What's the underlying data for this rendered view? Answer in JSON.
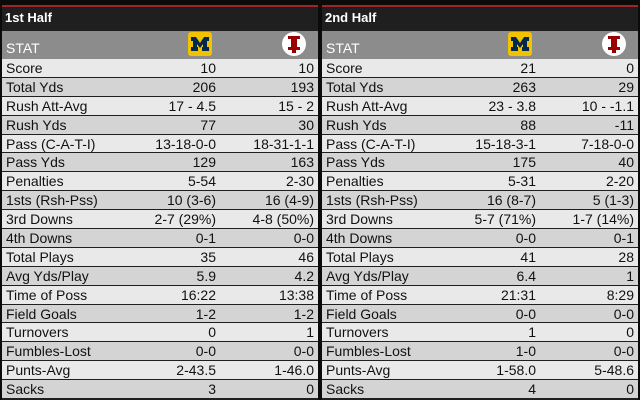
{
  "halves": [
    {
      "title": "1st Half",
      "stat_header": "STAT",
      "team1_logo": "michigan-block-m-logo",
      "team2_logo": "indiana-iu-logo",
      "rows": [
        {
          "label": "Score",
          "team1": "10",
          "team2": "10"
        },
        {
          "label": "Total Yds",
          "team1": "206",
          "team2": "193"
        },
        {
          "label": "Rush Att-Avg",
          "team1": "17 - 4.5",
          "team2": "15 - 2"
        },
        {
          "label": "Rush Yds",
          "team1": "77",
          "team2": "30"
        },
        {
          "label": "Pass (C-A-T-I)",
          "team1": "13-18-0-0",
          "team2": "18-31-1-1"
        },
        {
          "label": "Pass Yds",
          "team1": "129",
          "team2": "163"
        },
        {
          "label": "Penalties",
          "team1": "5-54",
          "team2": "2-30"
        },
        {
          "label": "1sts (Rsh-Pss)",
          "team1": "10 (3-6)",
          "team2": "16 (4-9)"
        },
        {
          "label": "3rd Downs",
          "team1": "2-7 (29%)",
          "team2": "4-8 (50%)"
        },
        {
          "label": "4th Downs",
          "team1": "0-1",
          "team2": "0-0"
        },
        {
          "label": "Total Plays",
          "team1": "35",
          "team2": "46"
        },
        {
          "label": "Avg Yds/Play",
          "team1": "5.9",
          "team2": "4.2"
        },
        {
          "label": "Time of Poss",
          "team1": "16:22",
          "team2": "13:38"
        },
        {
          "label": "Field Goals",
          "team1": "1-2",
          "team2": "1-2"
        },
        {
          "label": "Turnovers",
          "team1": "0",
          "team2": "1"
        },
        {
          "label": "Fumbles-Lost",
          "team1": "0-0",
          "team2": "0-0"
        },
        {
          "label": "Punts-Avg",
          "team1": "2-43.5",
          "team2": "1-46.0"
        },
        {
          "label": "Sacks",
          "team1": "3",
          "team2": "0"
        }
      ]
    },
    {
      "title": "2nd Half",
      "stat_header": "STAT",
      "team1_logo": "michigan-block-m-logo",
      "team2_logo": "indiana-iu-logo",
      "rows": [
        {
          "label": "Score",
          "team1": "21",
          "team2": "0"
        },
        {
          "label": "Total Yds",
          "team1": "263",
          "team2": "29"
        },
        {
          "label": "Rush Att-Avg",
          "team1": "23 - 3.8",
          "team2": "10 - -1.1"
        },
        {
          "label": "Rush Yds",
          "team1": "88",
          "team2": "-11"
        },
        {
          "label": "Pass (C-A-T-I)",
          "team1": "15-18-3-1",
          "team2": "7-18-0-0"
        },
        {
          "label": "Pass Yds",
          "team1": "175",
          "team2": "40"
        },
        {
          "label": "Penalties",
          "team1": "5-31",
          "team2": "2-20"
        },
        {
          "label": "1sts (Rsh-Pss)",
          "team1": "16 (8-7)",
          "team2": "5 (1-3)"
        },
        {
          "label": "3rd Downs",
          "team1": "5-7 (71%)",
          "team2": "1-7 (14%)"
        },
        {
          "label": "4th Downs",
          "team1": "0-0",
          "team2": "0-1"
        },
        {
          "label": "Total Plays",
          "team1": "41",
          "team2": "28"
        },
        {
          "label": "Avg Yds/Play",
          "team1": "6.4",
          "team2": "1"
        },
        {
          "label": "Time of Poss",
          "team1": "21:31",
          "team2": "8:29"
        },
        {
          "label": "Field Goals",
          "team1": "0-0",
          "team2": "0-0"
        },
        {
          "label": "Turnovers",
          "team1": "1",
          "team2": "0"
        },
        {
          "label": "Fumbles-Lost",
          "team1": "1-0",
          "team2": "0-0"
        },
        {
          "label": "Punts-Avg",
          "team1": "1-58.0",
          "team2": "5-48.6"
        },
        {
          "label": "Sacks",
          "team1": "4",
          "team2": "0"
        }
      ]
    }
  ],
  "colors": {
    "accent_border": "#a22424",
    "michigan_maize": "#f2c200",
    "michigan_blue": "#00274c",
    "indiana_crimson": "#990000"
  }
}
